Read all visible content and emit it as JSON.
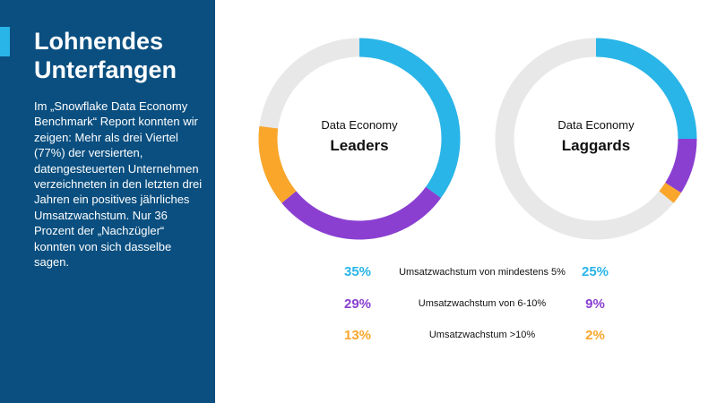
{
  "sidebar": {
    "title_line1": "Lohnendes",
    "title_line2": "Unterfangen",
    "body": "Im „Snowflake Data Economy Benchmark“ Report konnten wir zeigen: Mehr als drei Viertel (77%) der versierten, datengesteuerten Unternehmen verzeichneten in den letzten drei Jahren ein positives jährliches Umsatzwachstum. Nur 36 Prozent der „Nachzügler“ konnten von sich dasselbe sagen."
  },
  "colors": {
    "cyan": "#29b5e8",
    "purple": "#8a3fd1",
    "orange": "#f9a62b",
    "track": "#e8e8e8",
    "sidebar_bg": "#0a4f80"
  },
  "chart_data": {
    "type": "pie",
    "categories": [
      "Umsatzwachstum von mindestens 5%",
      "Umsatzwachstum von 6-10%",
      "Umsatzwachstum >10%"
    ],
    "series": [
      {
        "name": "Leaders",
        "label_small": "Data Economy",
        "values": [
          35,
          29,
          13
        ],
        "labels": [
          "35%",
          "29%",
          "13%"
        ]
      },
      {
        "name": "Laggards",
        "label_small": "Data Economy",
        "values": [
          25,
          9,
          2
        ],
        "labels": [
          "25%",
          "9%",
          "2%"
        ]
      }
    ]
  }
}
